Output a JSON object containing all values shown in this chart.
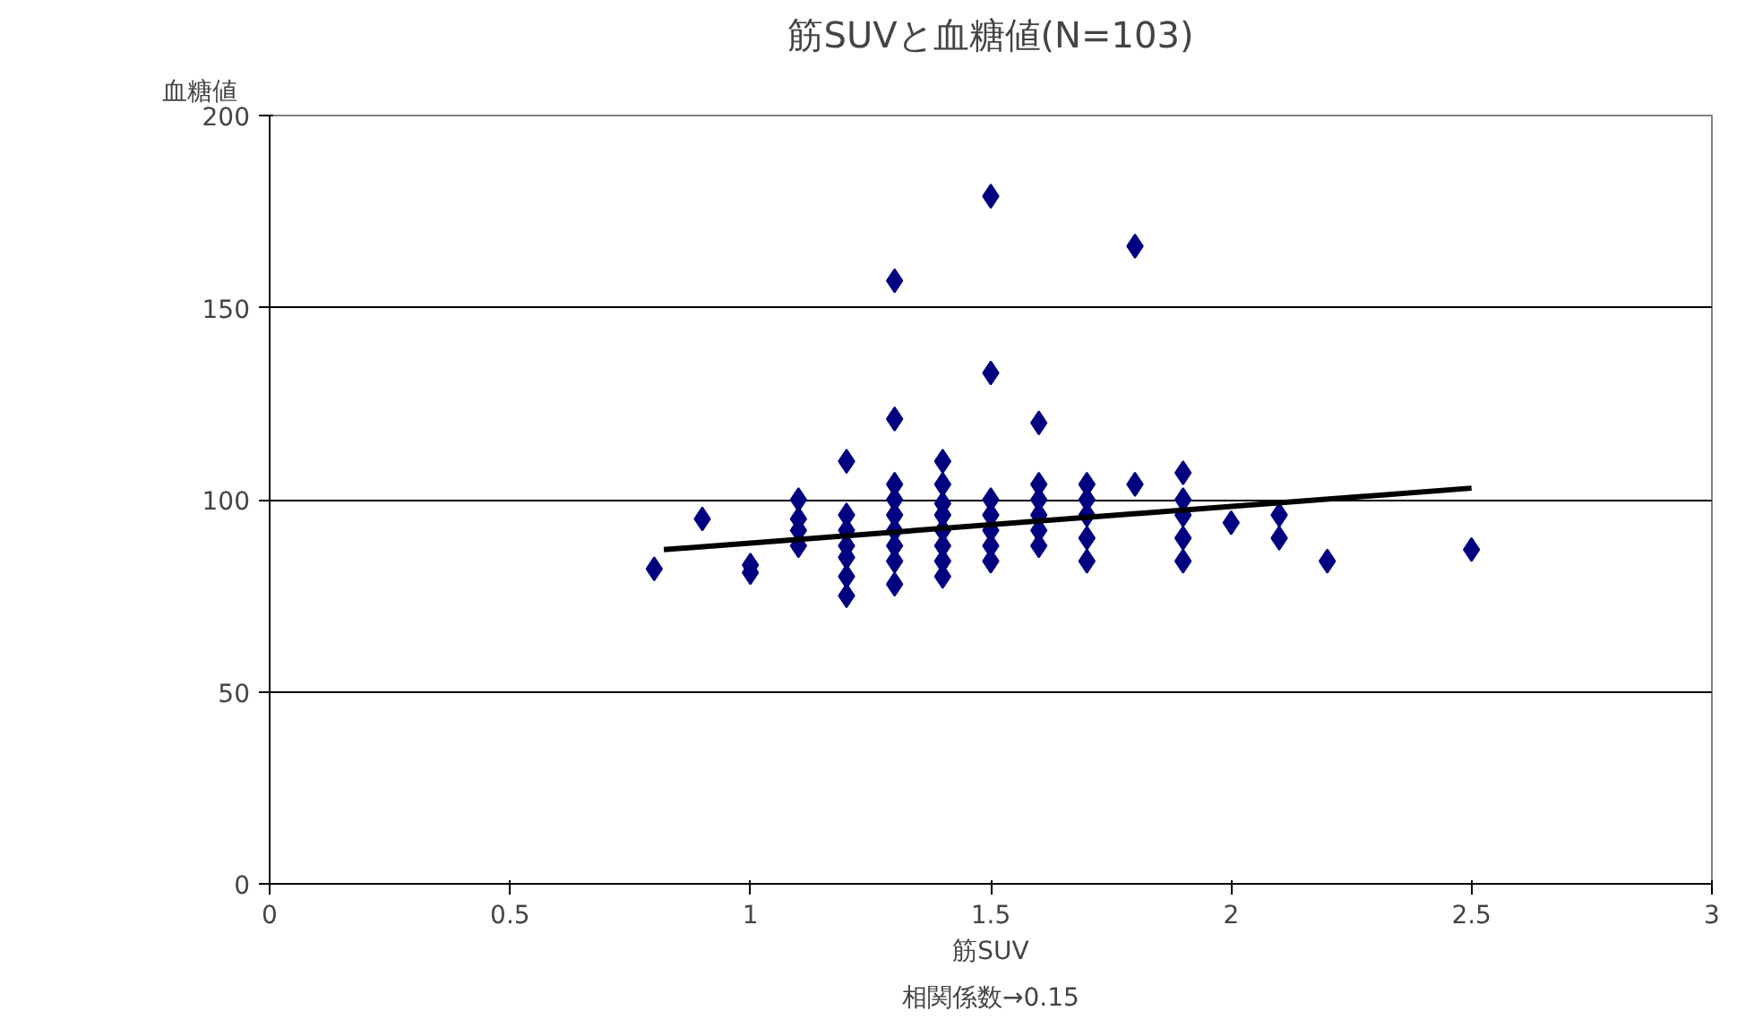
{
  "chart_data": {
    "type": "scatter",
    "title": "筋SUVと血糖値(N=103)",
    "xlabel": "筋SUV",
    "ylabel": "血糖値",
    "annotations": [
      "相関係数→0.15"
    ],
    "xlim": [
      0,
      3
    ],
    "xticks": [
      0,
      0.5,
      1,
      1.5,
      2,
      2.5,
      3
    ],
    "ylim": [
      0,
      200
    ],
    "yticks": [
      0,
      50,
      100,
      150,
      200
    ],
    "grid": "y",
    "series": [
      {
        "color": "#000080",
        "marker": "diamond",
        "x": [
          0.8,
          0.9,
          1.0,
          1.0,
          1.1,
          1.1,
          1.1,
          1.1,
          1.2,
          1.2,
          1.2,
          1.2,
          1.2,
          1.2,
          1.2,
          1.3,
          1.3,
          1.3,
          1.3,
          1.3,
          1.3,
          1.3,
          1.3,
          1.3,
          1.4,
          1.4,
          1.4,
          1.4,
          1.4,
          1.4,
          1.4,
          1.4,
          1.5,
          1.5,
          1.5,
          1.5,
          1.5,
          1.5,
          1.5,
          1.6,
          1.6,
          1.6,
          1.6,
          1.6,
          1.6,
          1.7,
          1.7,
          1.7,
          1.7,
          1.7,
          1.8,
          1.8,
          1.9,
          1.9,
          1.9,
          1.9,
          1.9,
          2.0,
          2.1,
          2.1,
          2.2,
          2.5
        ],
        "values": [
          82,
          95,
          83,
          81,
          100,
          95,
          92,
          88,
          110,
          96,
          92,
          88,
          85,
          80,
          75,
          157,
          121,
          104,
          100,
          96,
          92,
          88,
          84,
          78,
          110,
          104,
          99,
          96,
          92,
          88,
          84,
          80,
          179,
          133,
          100,
          96,
          92,
          88,
          84,
          120,
          104,
          100,
          96,
          92,
          88,
          104,
          100,
          96,
          90,
          84,
          166,
          104,
          107,
          100,
          96,
          90,
          84,
          94,
          96,
          90,
          84,
          87
        ]
      },
      {
        "type": "line",
        "color": "#000000",
        "x": [
          0.82,
          2.5
        ],
        "values": [
          87,
          103
        ]
      }
    ]
  }
}
